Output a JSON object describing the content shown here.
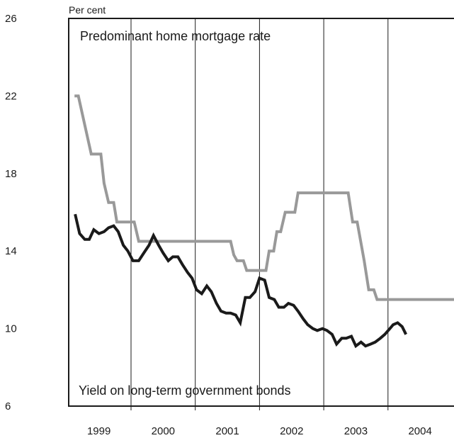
{
  "chart_data": {
    "type": "line",
    "y_unit_label": "Per cent",
    "ylim": [
      6,
      26
    ],
    "yticks": [
      6,
      10,
      14,
      18,
      22,
      26
    ],
    "xlim": [
      1998.6,
      2004.8
    ],
    "year_gridlines": [
      1999.5,
      2000.5,
      2001.5,
      2002.5,
      2003.5
    ],
    "x_tick_labels": [
      {
        "label": "1999",
        "x": 1999.0
      },
      {
        "label": "2000",
        "x": 2000.0
      },
      {
        "label": "2001",
        "x": 2001.0
      },
      {
        "label": "2002",
        "x": 2002.0
      },
      {
        "label": "2003",
        "x": 2003.0
      },
      {
        "label": "2004",
        "x": 2004.0
      }
    ],
    "annotations": {
      "mortgage": "Predominant home mortgage rate",
      "bonds": "Yield on long-term government bonds"
    },
    "series": [
      {
        "key": "mortgage",
        "color": "#999999",
        "points": [
          [
            1998.62,
            22.0
          ],
          [
            1998.68,
            22.0
          ],
          [
            1998.88,
            19.0
          ],
          [
            1999.03,
            19.0
          ],
          [
            1999.08,
            17.5
          ],
          [
            1999.15,
            16.5
          ],
          [
            1999.23,
            16.5
          ],
          [
            1999.28,
            15.5
          ],
          [
            1999.55,
            15.5
          ],
          [
            1999.62,
            14.5
          ],
          [
            1999.92,
            14.5
          ],
          [
            2000.42,
            14.5
          ],
          [
            2001.05,
            14.5
          ],
          [
            2001.1,
            13.8
          ],
          [
            2001.15,
            13.5
          ],
          [
            2001.25,
            13.5
          ],
          [
            2001.3,
            13.0
          ],
          [
            2001.6,
            13.0
          ],
          [
            2001.65,
            14.0
          ],
          [
            2001.72,
            14.0
          ],
          [
            2001.77,
            15.0
          ],
          [
            2001.83,
            15.0
          ],
          [
            2001.9,
            16.0
          ],
          [
            2002.05,
            16.0
          ],
          [
            2002.1,
            17.0
          ],
          [
            2002.88,
            17.0
          ],
          [
            2002.95,
            15.5
          ],
          [
            2003.02,
            15.5
          ],
          [
            2003.13,
            13.5
          ],
          [
            2003.2,
            12.0
          ],
          [
            2003.28,
            12.0
          ],
          [
            2003.33,
            11.5
          ],
          [
            2004.58,
            11.5
          ],
          [
            2004.65,
            11.0
          ]
        ]
      },
      {
        "key": "bonds",
        "color": "#1a1a1a",
        "points": [
          [
            1998.63,
            15.9
          ],
          [
            1998.7,
            14.9
          ],
          [
            1998.78,
            14.6
          ],
          [
            1998.85,
            14.6
          ],
          [
            1998.92,
            15.1
          ],
          [
            1999.0,
            14.9
          ],
          [
            1999.08,
            15.0
          ],
          [
            1999.15,
            15.2
          ],
          [
            1999.23,
            15.3
          ],
          [
            1999.3,
            15.0
          ],
          [
            1999.38,
            14.3
          ],
          [
            1999.45,
            14.0
          ],
          [
            1999.53,
            13.5
          ],
          [
            1999.62,
            13.5
          ],
          [
            1999.7,
            13.9
          ],
          [
            1999.78,
            14.3
          ],
          [
            1999.85,
            14.8
          ],
          [
            1999.93,
            14.3
          ],
          [
            2000.0,
            13.9
          ],
          [
            2000.08,
            13.5
          ],
          [
            2000.15,
            13.7
          ],
          [
            2000.23,
            13.7
          ],
          [
            2000.3,
            13.3
          ],
          [
            2000.38,
            12.9
          ],
          [
            2000.45,
            12.6
          ],
          [
            2000.52,
            12.0
          ],
          [
            2000.6,
            11.8
          ],
          [
            2000.68,
            12.2
          ],
          [
            2000.75,
            11.9
          ],
          [
            2000.83,
            11.3
          ],
          [
            2000.9,
            10.9
          ],
          [
            2000.98,
            10.8
          ],
          [
            2001.05,
            10.8
          ],
          [
            2001.13,
            10.7
          ],
          [
            2001.2,
            10.3
          ],
          [
            2001.28,
            11.6
          ],
          [
            2001.35,
            11.6
          ],
          [
            2001.43,
            11.9
          ],
          [
            2001.5,
            12.6
          ],
          [
            2001.58,
            12.5
          ],
          [
            2001.65,
            11.6
          ],
          [
            2001.73,
            11.5
          ],
          [
            2001.8,
            11.1
          ],
          [
            2001.88,
            11.1
          ],
          [
            2001.95,
            11.3
          ],
          [
            2002.03,
            11.2
          ],
          [
            2002.1,
            10.9
          ],
          [
            2002.18,
            10.5
          ],
          [
            2002.25,
            10.2
          ],
          [
            2002.33,
            10.0
          ],
          [
            2002.4,
            9.9
          ],
          [
            2002.48,
            10.0
          ],
          [
            2002.55,
            9.9
          ],
          [
            2002.63,
            9.7
          ],
          [
            2002.7,
            9.2
          ],
          [
            2002.78,
            9.5
          ],
          [
            2002.85,
            9.5
          ],
          [
            2002.93,
            9.6
          ],
          [
            2003.0,
            9.1
          ],
          [
            2003.08,
            9.3
          ],
          [
            2003.15,
            9.1
          ],
          [
            2003.23,
            9.2
          ],
          [
            2003.3,
            9.3
          ],
          [
            2003.38,
            9.5
          ],
          [
            2003.45,
            9.7
          ],
          [
            2003.53,
            10.0
          ],
          [
            2003.58,
            10.2
          ],
          [
            2003.65,
            10.3
          ],
          [
            2003.72,
            10.1
          ],
          [
            2003.78,
            9.7
          ]
        ]
      }
    ]
  }
}
